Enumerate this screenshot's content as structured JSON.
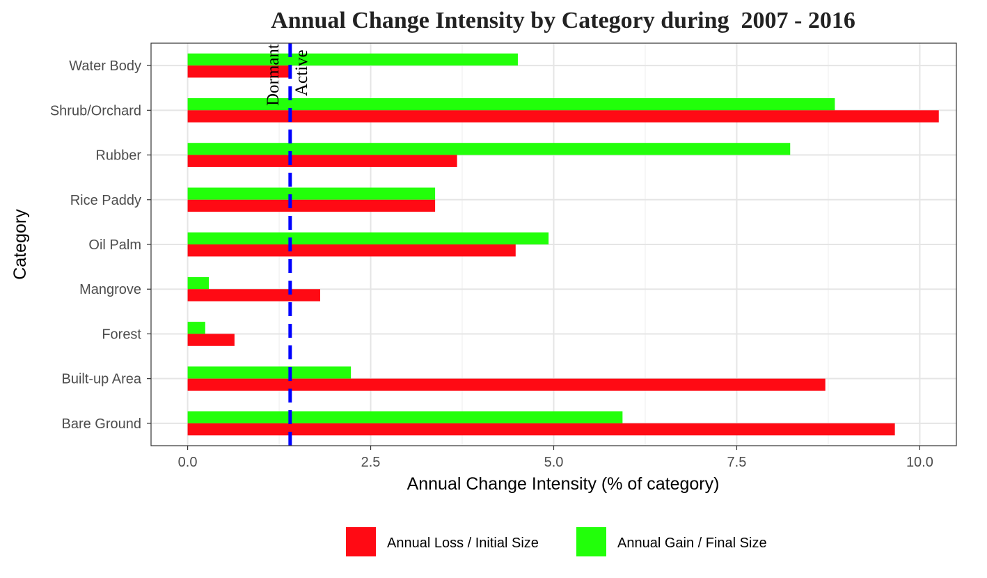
{
  "chart_data": {
    "type": "bar",
    "orientation": "horizontal",
    "title": "Annual Change Intensity by Category during  2007 - 2016",
    "xlabel": "Annual Change Intensity (% of category)",
    "ylabel": "Category",
    "xlim": [
      -0.5,
      10.5
    ],
    "xticks": [
      0.0,
      2.5,
      5.0,
      7.5,
      10.0
    ],
    "xtick_labels": [
      "0.0",
      "2.5",
      "5.0",
      "7.5",
      "10.0"
    ],
    "categories": [
      "Water Body",
      "Shrub/Orchard",
      "Rubber",
      "Rice Paddy",
      "Oil Palm",
      "Mangrove",
      "Forest",
      "Built-up Area",
      "Bare Ground"
    ],
    "series": [
      {
        "name": "Annual Gain / Final Size",
        "color": "#22ff0a",
        "values": [
          4.51,
          8.84,
          8.23,
          3.38,
          4.93,
          0.29,
          0.24,
          2.23,
          5.94
        ]
      },
      {
        "name": "Annual Loss / Initial Size",
        "color": "#ff0a14",
        "values": [
          1.42,
          10.26,
          3.68,
          3.38,
          4.48,
          1.81,
          0.64,
          8.71,
          9.66
        ]
      }
    ],
    "legend_order": [
      "Annual Loss / Initial Size",
      "Annual Gain / Final Size"
    ],
    "legend_position": "bottom",
    "grid": true,
    "reference_line": {
      "x": 1.4,
      "color": "#0000ff",
      "style": "dashed",
      "label_left": "Dormant",
      "label_right": "Active"
    }
  }
}
